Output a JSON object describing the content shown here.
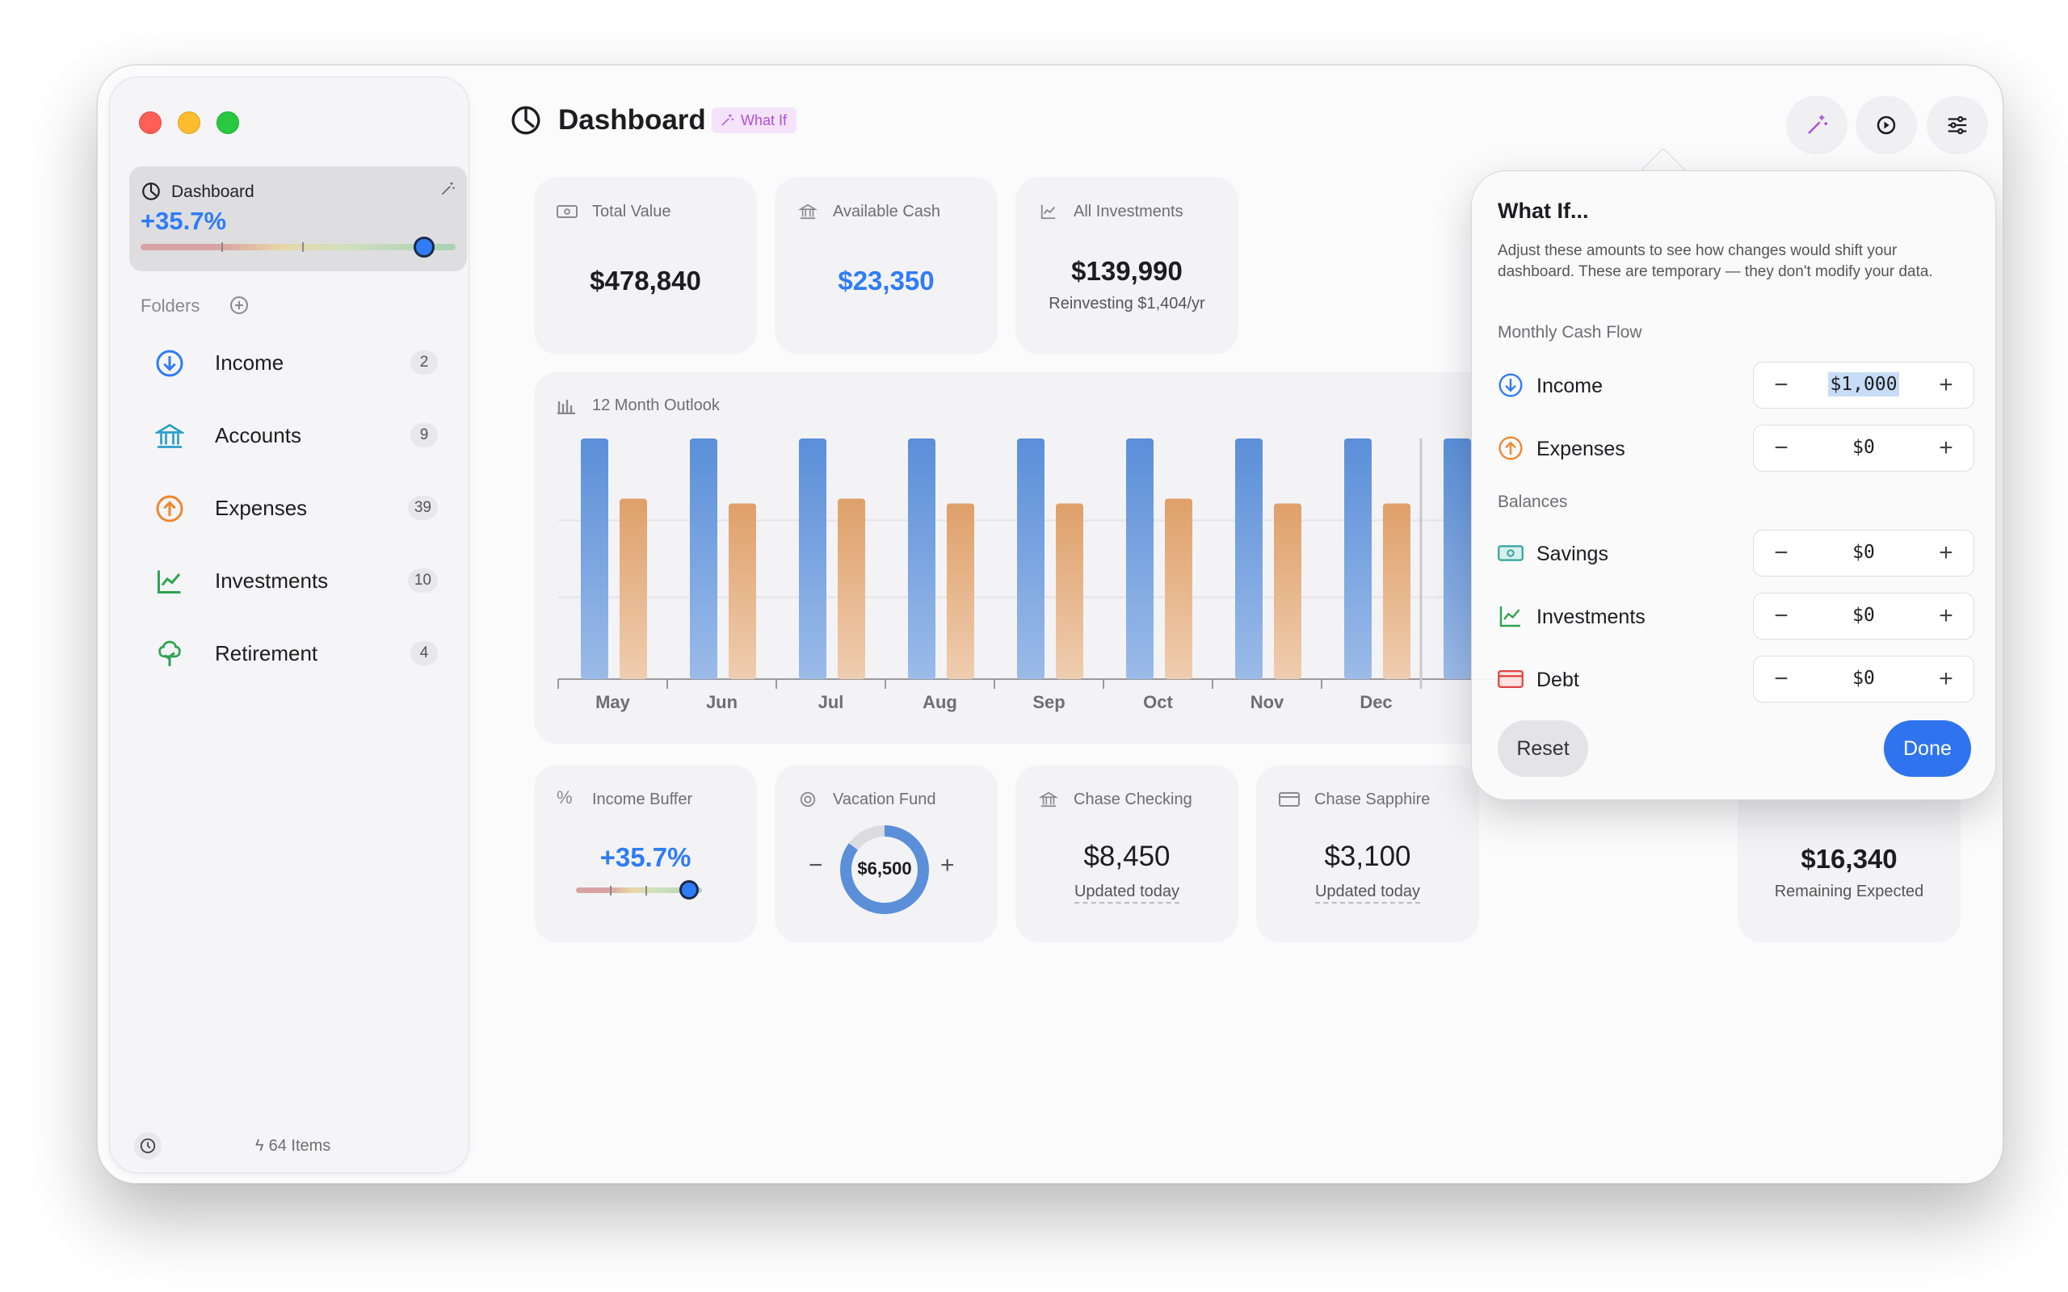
{
  "sidebar": {
    "dashboard_card": {
      "label": "Dashboard",
      "percent": "+35.7%",
      "slider_fraction": 0.9
    },
    "folders_header": "Folders",
    "items": [
      {
        "label": "Income",
        "count": "2",
        "icon": "arrow-down-circle-icon",
        "color": "#2f7cf6"
      },
      {
        "label": "Accounts",
        "count": "9",
        "icon": "bank-icon",
        "color": "#2aa0c8"
      },
      {
        "label": "Expenses",
        "count": "39",
        "icon": "arrow-up-circle-icon",
        "color": "#f0862e"
      },
      {
        "label": "Investments",
        "count": "10",
        "icon": "chart-line-icon",
        "color": "#2ea44f"
      },
      {
        "label": "Retirement",
        "count": "4",
        "icon": "tree-icon",
        "color": "#2ea44f"
      }
    ],
    "footer": {
      "items_count": "64 Items"
    }
  },
  "header": {
    "title": "Dashboard",
    "badge": "What If"
  },
  "cards": {
    "total_value": {
      "label": "Total Value",
      "value": "$478,840"
    },
    "available_cash": {
      "label": "Available Cash",
      "value": "$23,350",
      "color": "#2f7cf6"
    },
    "all_investments": {
      "label": "All Investments",
      "value": "$139,990",
      "sub": "Reinvesting $1,404/yr"
    },
    "income_buffer": {
      "label": "Income Buffer",
      "value": "+35.7%",
      "slider_fraction": 0.9
    },
    "vacation_fund": {
      "label": "Vacation Fund",
      "value": "$6,500",
      "progress_fraction": 0.85
    },
    "chase_checking": {
      "label": "Chase Checking",
      "value": "$8,450",
      "sub": "Updated today"
    },
    "chase_sapphire": {
      "label": "Chase Sapphire",
      "value": "$3,100",
      "sub": "Updated today"
    },
    "remaining": {
      "value": "$16,340",
      "sub": "Remaining Expected"
    }
  },
  "chart_title": "12 Month Outlook",
  "chart_data": {
    "type": "bar",
    "categories": [
      "May",
      "Jun",
      "Jul",
      "Aug",
      "Sep",
      "Oct",
      "Nov",
      "Dec"
    ],
    "series": [
      {
        "values": [
          100,
          100,
          100,
          100,
          100,
          100,
          100,
          100
        ],
        "color": "#5b8fd9"
      },
      {
        "values": [
          75,
          73,
          75,
          73,
          73,
          75,
          73,
          73
        ],
        "color": "#e0a06a"
      }
    ],
    "ylim": [
      0,
      100
    ],
    "grid": true
  },
  "popover": {
    "title": "What If...",
    "description": "Adjust these amounts to see how changes would shift your dashboard. These are temporary — they don't modify your data.",
    "section_cash_flow": "Monthly Cash Flow",
    "section_balances": "Balances",
    "rows": [
      {
        "label": "Income",
        "value": "$1,000",
        "icon": "arrow-down-circle-icon"
      },
      {
        "label": "Expenses",
        "value": "$0",
        "icon": "arrow-up-circle-icon"
      },
      {
        "label": "Savings",
        "value": "$0",
        "icon": "banknote-icon"
      },
      {
        "label": "Investments",
        "value": "$0",
        "icon": "chart-line-icon"
      },
      {
        "label": "Debt",
        "value": "$0",
        "icon": "credit-card-icon"
      }
    ],
    "minus": "−",
    "plus": "+",
    "reset_label": "Reset",
    "done_label": "Done"
  },
  "toolbar_icons": [
    "magic-wand-icon",
    "clock-play-icon",
    "sliders-icon"
  ]
}
